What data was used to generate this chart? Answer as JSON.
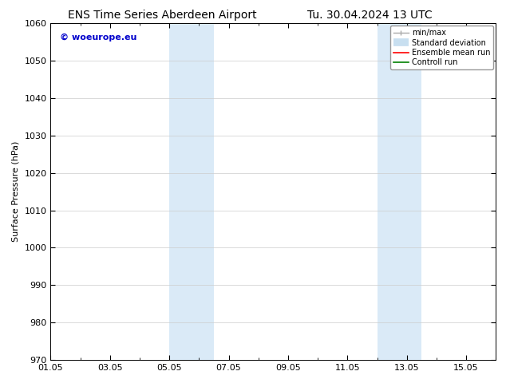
{
  "title_left": "ENS Time Series Aberdeen Airport",
  "title_right": "Tu. 30.04.2024 13 UTC",
  "ylabel": "Surface Pressure (hPa)",
  "ylim": [
    970,
    1060
  ],
  "yticks": [
    970,
    980,
    990,
    1000,
    1010,
    1020,
    1030,
    1040,
    1050,
    1060
  ],
  "xlim": [
    0,
    15
  ],
  "xtick_labels": [
    "01.05",
    "03.05",
    "05.05",
    "07.05",
    "09.05",
    "11.05",
    "13.05",
    "15.05"
  ],
  "xtick_positions": [
    0,
    2,
    4,
    6,
    8,
    10,
    12,
    14
  ],
  "shaded_bands": [
    {
      "x_start": 4.0,
      "x_end": 5.5
    },
    {
      "x_start": 11.0,
      "x_end": 12.5
    }
  ],
  "shaded_color": "#daeaf7",
  "watermark_text": "© woeurope.eu",
  "watermark_color": "#0000cc",
  "background_color": "#ffffff",
  "legend_items": [
    {
      "label": "min/max",
      "color": "#aaaaaa",
      "lw": 1.0
    },
    {
      "label": "Standard deviation",
      "color": "#c8dff0",
      "lw": 7
    },
    {
      "label": "Ensemble mean run",
      "color": "#ff0000",
      "lw": 1.2
    },
    {
      "label": "Controll run",
      "color": "#008000",
      "lw": 1.2
    }
  ],
  "grid_color": "#cccccc",
  "title_fontsize": 10,
  "axis_fontsize": 8,
  "tick_fontsize": 8,
  "legend_fontsize": 7
}
